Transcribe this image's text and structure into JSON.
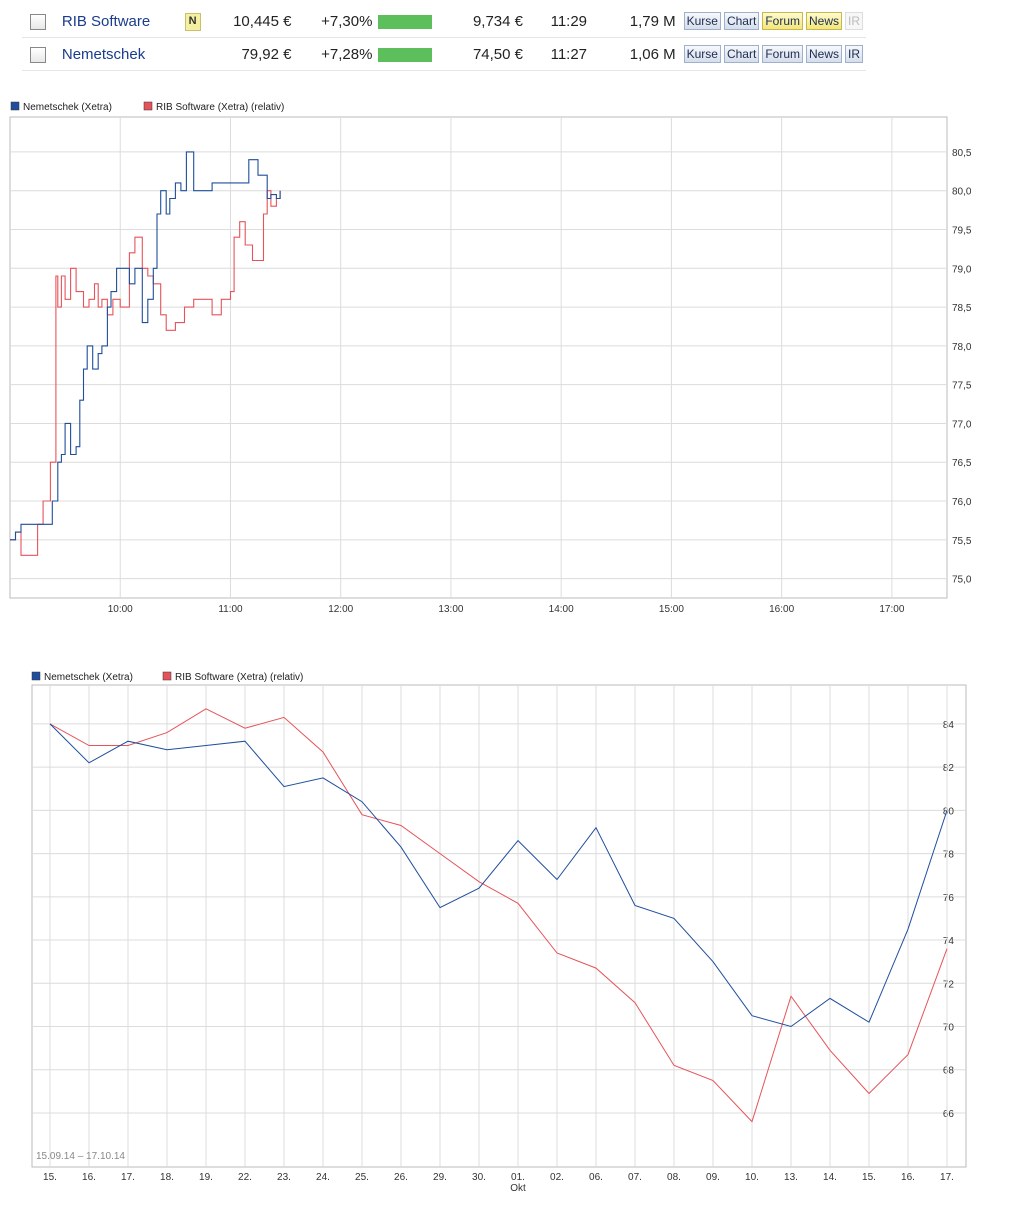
{
  "table": {
    "rows": [
      {
        "name": "RIB Software",
        "indicator": "N",
        "price": "10,445 €",
        "change": "+7,30%",
        "prev": "9,734 €",
        "time": "11:29",
        "volume": "1,79 M",
        "bar_fraction": 1.0,
        "buttons": [
          "Kurse",
          "Chart",
          "Forum",
          "News",
          "IR"
        ]
      },
      {
        "name": "Nemetschek",
        "indicator": "",
        "price": "79,92 €",
        "change": "+7,28%",
        "prev": "74,50 €",
        "time": "11:27",
        "volume": "1,06 M",
        "bar_fraction": 1.0,
        "buttons": [
          "Kurse",
          "Chart",
          "Forum",
          "News",
          "IR"
        ]
      }
    ]
  },
  "colors": {
    "nemetschek": "#1f4e9c",
    "rib": "#e5545a",
    "grid": "#dcdcdc",
    "bar": "#5cbf5c"
  },
  "chart_data": [
    {
      "type": "line",
      "legend": [
        "Nemetschek (Xetra)",
        "RIB Software (Xetra) (relativ)"
      ],
      "legend_position": "top-left",
      "x_ticks": [
        "10:00",
        "11:00",
        "12:00",
        "13:00",
        "14:00",
        "15:00",
        "16:00",
        "17:00"
      ],
      "y_ticks": [
        "75,0",
        "75,5",
        "76,0",
        "76,5",
        "77,0",
        "77,5",
        "78,0",
        "78,5",
        "79,0",
        "79,5",
        "80,0",
        "80,5"
      ],
      "xlim": [
        "09:00",
        "17:30"
      ],
      "ylim": [
        74.75,
        80.95
      ],
      "grid": true,
      "series": [
        {
          "name": "Nemetschek (Xetra)",
          "x": [
            "09:00",
            "09:03",
            "09:06",
            "09:10",
            "09:20",
            "09:23",
            "09:26",
            "09:28",
            "09:30",
            "09:33",
            "09:36",
            "09:38",
            "09:40",
            "09:42",
            "09:45",
            "09:48",
            "09:50",
            "09:53",
            "09:55",
            "09:58",
            "10:00",
            "10:05",
            "10:08",
            "10:12",
            "10:15",
            "10:18",
            "10:20",
            "10:22",
            "10:25",
            "10:27",
            "10:30",
            "10:33",
            "10:36",
            "10:40",
            "10:43",
            "10:46",
            "10:50",
            "10:55",
            "11:00",
            "11:05",
            "11:10",
            "11:15",
            "11:18",
            "11:20",
            "11:22",
            "11:25",
            "11:27"
          ],
          "y": [
            75.5,
            75.6,
            75.7,
            75.7,
            75.7,
            76.0,
            76.5,
            76.6,
            77.0,
            76.6,
            76.7,
            77.3,
            77.7,
            78.0,
            77.7,
            77.9,
            78.0,
            78.5,
            78.7,
            79.0,
            79.0,
            78.8,
            79.0,
            78.3,
            78.6,
            79.0,
            79.7,
            80.0,
            79.7,
            79.9,
            80.1,
            80.0,
            80.5,
            80.0,
            80.0,
            80.0,
            80.1,
            80.1,
            80.1,
            80.1,
            80.4,
            80.2,
            80.2,
            79.9,
            79.95,
            79.9,
            80.0
          ]
        },
        {
          "name": "RIB Software (Xetra) (relativ)",
          "x": [
            "09:00",
            "09:03",
            "09:06",
            "09:08",
            "09:12",
            "09:15",
            "09:18",
            "09:22",
            "09:25",
            "09:26",
            "09:28",
            "09:30",
            "09:33",
            "09:36",
            "09:40",
            "09:43",
            "09:46",
            "09:48",
            "09:50",
            "09:53",
            "09:56",
            "10:00",
            "10:05",
            "10:08",
            "10:12",
            "10:15",
            "10:18",
            "10:22",
            "10:25",
            "10:30",
            "10:35",
            "10:40",
            "10:45",
            "10:50",
            "10:55",
            "11:00",
            "11:02",
            "11:05",
            "11:08",
            "11:12",
            "11:15",
            "11:18",
            "11:20",
            "11:22",
            "11:25",
            "11:27"
          ],
          "y": [
            75.5,
            75.6,
            75.3,
            75.3,
            75.3,
            75.7,
            76.0,
            76.5,
            78.9,
            78.5,
            78.9,
            78.6,
            79.0,
            78.7,
            78.5,
            78.6,
            78.8,
            78.5,
            78.6,
            78.4,
            78.6,
            78.5,
            79.2,
            79.4,
            79.0,
            78.9,
            78.8,
            78.4,
            78.2,
            78.3,
            78.5,
            78.6,
            78.6,
            78.4,
            78.6,
            78.7,
            79.4,
            79.6,
            79.3,
            79.1,
            79.1,
            79.7,
            80.0,
            79.8,
            79.9,
            80.0
          ]
        }
      ]
    },
    {
      "type": "line",
      "legend": [
        "Nemetschek (Xetra)",
        "RIB Software (Xetra) (relativ)"
      ],
      "legend_position": "top-left",
      "range_label": "15.09.14 – 17.10.14",
      "month_label": "Okt",
      "categories": [
        "15.",
        "16.",
        "17.",
        "18.",
        "19.",
        "22.",
        "23.",
        "24.",
        "25.",
        "26.",
        "29.",
        "30.",
        "01.",
        "02.",
        "06.",
        "07.",
        "08.",
        "09.",
        "10.",
        "13.",
        "14.",
        "15.",
        "16.",
        "17."
      ],
      "y_ticks": [
        "66",
        "68",
        "70",
        "72",
        "74",
        "76",
        "78",
        "80",
        "82",
        "84"
      ],
      "ylim": [
        63.5,
        85.8
      ],
      "grid": true,
      "series": [
        {
          "name": "Nemetschek (Xetra)",
          "values": [
            84.0,
            82.2,
            83.2,
            82.8,
            83.0,
            83.2,
            81.1,
            81.5,
            80.4,
            78.3,
            75.5,
            76.4,
            78.6,
            76.8,
            79.2,
            75.6,
            75.0,
            73.0,
            70.5,
            70.0,
            71.3,
            70.2,
            74.5,
            80.0
          ]
        },
        {
          "name": "RIB Software (Xetra) (relativ)",
          "values": [
            84.0,
            83.0,
            83.0,
            83.6,
            84.7,
            83.8,
            84.3,
            82.7,
            79.8,
            79.3,
            78.0,
            76.7,
            75.7,
            73.4,
            72.7,
            71.1,
            68.2,
            67.5,
            65.6,
            71.4,
            68.9,
            66.9,
            68.7,
            73.6
          ]
        }
      ]
    }
  ]
}
